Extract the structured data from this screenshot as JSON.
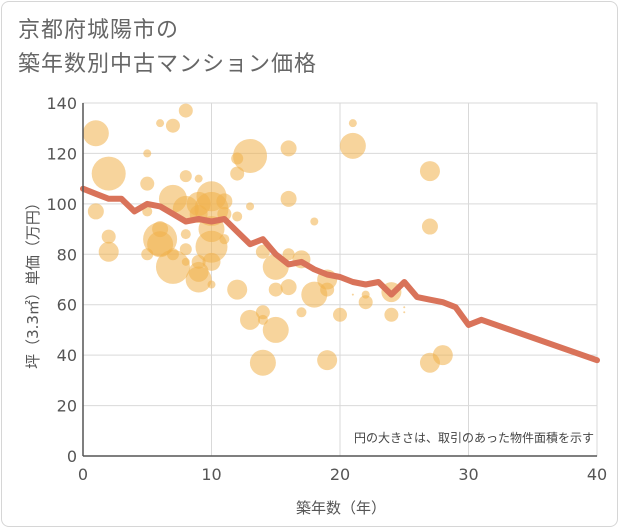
{
  "title_line1": "京都府城陽市の",
  "title_line2": "築年数別中古マンション価格",
  "chart_data": {
    "type": "scatter",
    "xlabel": "築年数（年）",
    "ylabel": "坪（3.3㎡）単価（万円）",
    "xlim": [
      0,
      40
    ],
    "ylim": [
      0,
      140
    ],
    "x_ticks": [
      0,
      10,
      20,
      30,
      40
    ],
    "y_ticks": [
      0,
      20,
      40,
      60,
      80,
      100,
      120,
      140
    ],
    "grid": true,
    "note": "円の大きさは、取引のあった物件面積を示す",
    "colors": {
      "bubble": "#f0b14a",
      "line": "#d9735a",
      "grid": "#d9d9d9",
      "axis": "#555555"
    },
    "bubbles": [
      {
        "x": 1,
        "y": 128,
        "s": 13
      },
      {
        "x": 1,
        "y": 97,
        "s": 8
      },
      {
        "x": 2,
        "y": 112,
        "s": 17
      },
      {
        "x": 2,
        "y": 87,
        "s": 7
      },
      {
        "x": 2,
        "y": 81,
        "s": 10
      },
      {
        "x": 5,
        "y": 120,
        "s": 4
      },
      {
        "x": 5,
        "y": 108,
        "s": 7
      },
      {
        "x": 5,
        "y": 97,
        "s": 5
      },
      {
        "x": 5,
        "y": 80,
        "s": 6
      },
      {
        "x": 6,
        "y": 132,
        "s": 4
      },
      {
        "x": 6,
        "y": 90,
        "s": 8
      },
      {
        "x": 6,
        "y": 86,
        "s": 17
      },
      {
        "x": 6,
        "y": 84,
        "s": 13
      },
      {
        "x": 7,
        "y": 131,
        "s": 7
      },
      {
        "x": 7,
        "y": 102,
        "s": 14
      },
      {
        "x": 7,
        "y": 80,
        "s": 6
      },
      {
        "x": 7,
        "y": 75,
        "s": 17
      },
      {
        "x": 8,
        "y": 137,
        "s": 7
      },
      {
        "x": 8,
        "y": 111,
        "s": 6
      },
      {
        "x": 8,
        "y": 98,
        "s": 13
      },
      {
        "x": 8,
        "y": 88,
        "s": 5
      },
      {
        "x": 8,
        "y": 82,
        "s": 6
      },
      {
        "x": 8,
        "y": 77,
        "s": 4
      },
      {
        "x": 9,
        "y": 110,
        "s": 4
      },
      {
        "x": 9,
        "y": 100,
        "s": 12
      },
      {
        "x": 9,
        "y": 96,
        "s": 9
      },
      {
        "x": 9,
        "y": 77,
        "s": 7
      },
      {
        "x": 9,
        "y": 73,
        "s": 10
      },
      {
        "x": 9,
        "y": 70,
        "s": 13
      },
      {
        "x": 10,
        "y": 103,
        "s": 15
      },
      {
        "x": 10,
        "y": 98,
        "s": 17
      },
      {
        "x": 10,
        "y": 90,
        "s": 13
      },
      {
        "x": 10,
        "y": 83,
        "s": 16
      },
      {
        "x": 10,
        "y": 77,
        "s": 9
      },
      {
        "x": 10,
        "y": 68,
        "s": 4
      },
      {
        "x": 11,
        "y": 101,
        "s": 8
      },
      {
        "x": 11,
        "y": 96,
        "s": 7
      },
      {
        "x": 11,
        "y": 86,
        "s": 5
      },
      {
        "x": 12,
        "y": 118,
        "s": 6
      },
      {
        "x": 12,
        "y": 112,
        "s": 7
      },
      {
        "x": 12,
        "y": 95,
        "s": 5
      },
      {
        "x": 12,
        "y": 66,
        "s": 10
      },
      {
        "x": 13,
        "y": 119,
        "s": 17
      },
      {
        "x": 13,
        "y": 99,
        "s": 4
      },
      {
        "x": 13,
        "y": 54,
        "s": 10
      },
      {
        "x": 14,
        "y": 81,
        "s": 7
      },
      {
        "x": 14,
        "y": 57,
        "s": 7
      },
      {
        "x": 14,
        "y": 54,
        "s": 5
      },
      {
        "x": 14,
        "y": 37,
        "s": 13
      },
      {
        "x": 15,
        "y": 75,
        "s": 13
      },
      {
        "x": 15,
        "y": 66,
        "s": 7
      },
      {
        "x": 15,
        "y": 50,
        "s": 13
      },
      {
        "x": 16,
        "y": 122,
        "s": 8
      },
      {
        "x": 16,
        "y": 102,
        "s": 8
      },
      {
        "x": 16,
        "y": 80,
        "s": 6
      },
      {
        "x": 16,
        "y": 67,
        "s": 8
      },
      {
        "x": 17,
        "y": 78,
        "s": 9
      },
      {
        "x": 17,
        "y": 57,
        "s": 5
      },
      {
        "x": 18,
        "y": 93,
        "s": 4
      },
      {
        "x": 18,
        "y": 64,
        "s": 13
      },
      {
        "x": 19,
        "y": 70,
        "s": 10
      },
      {
        "x": 19,
        "y": 66,
        "s": 7
      },
      {
        "x": 19,
        "y": 38,
        "s": 10
      },
      {
        "x": 20,
        "y": 56,
        "s": 7
      },
      {
        "x": 21,
        "y": 132,
        "s": 4
      },
      {
        "x": 21,
        "y": 123,
        "s": 13
      },
      {
        "x": 21,
        "y": 64,
        "s": 1
      },
      {
        "x": 22,
        "y": 64,
        "s": 4
      },
      {
        "x": 22,
        "y": 61,
        "s": 7
      },
      {
        "x": 24,
        "y": 65,
        "s": 10
      },
      {
        "x": 24,
        "y": 56,
        "s": 7
      },
      {
        "x": 25,
        "y": 59,
        "s": 1
      },
      {
        "x": 25,
        "y": 57,
        "s": 1
      },
      {
        "x": 27,
        "y": 113,
        "s": 10
      },
      {
        "x": 27,
        "y": 91,
        "s": 8
      },
      {
        "x": 27,
        "y": 37,
        "s": 10
      },
      {
        "x": 28,
        "y": 40,
        "s": 10
      }
    ],
    "trend_line": {
      "x": [
        0,
        1,
        2,
        3,
        4,
        5,
        6,
        7,
        8,
        9,
        10,
        11,
        12,
        13,
        14,
        15,
        16,
        17,
        18,
        19,
        20,
        21,
        22,
        23,
        24,
        25,
        26,
        27,
        28,
        29,
        30,
        31,
        40
      ],
      "y": [
        106,
        104,
        102,
        102,
        97,
        100,
        99,
        96,
        93,
        94,
        93,
        94,
        89,
        84,
        86,
        80,
        76,
        77,
        74,
        72,
        71,
        69,
        68,
        69,
        64,
        69,
        63,
        62,
        61,
        59,
        52,
        54,
        38
      ]
    }
  }
}
